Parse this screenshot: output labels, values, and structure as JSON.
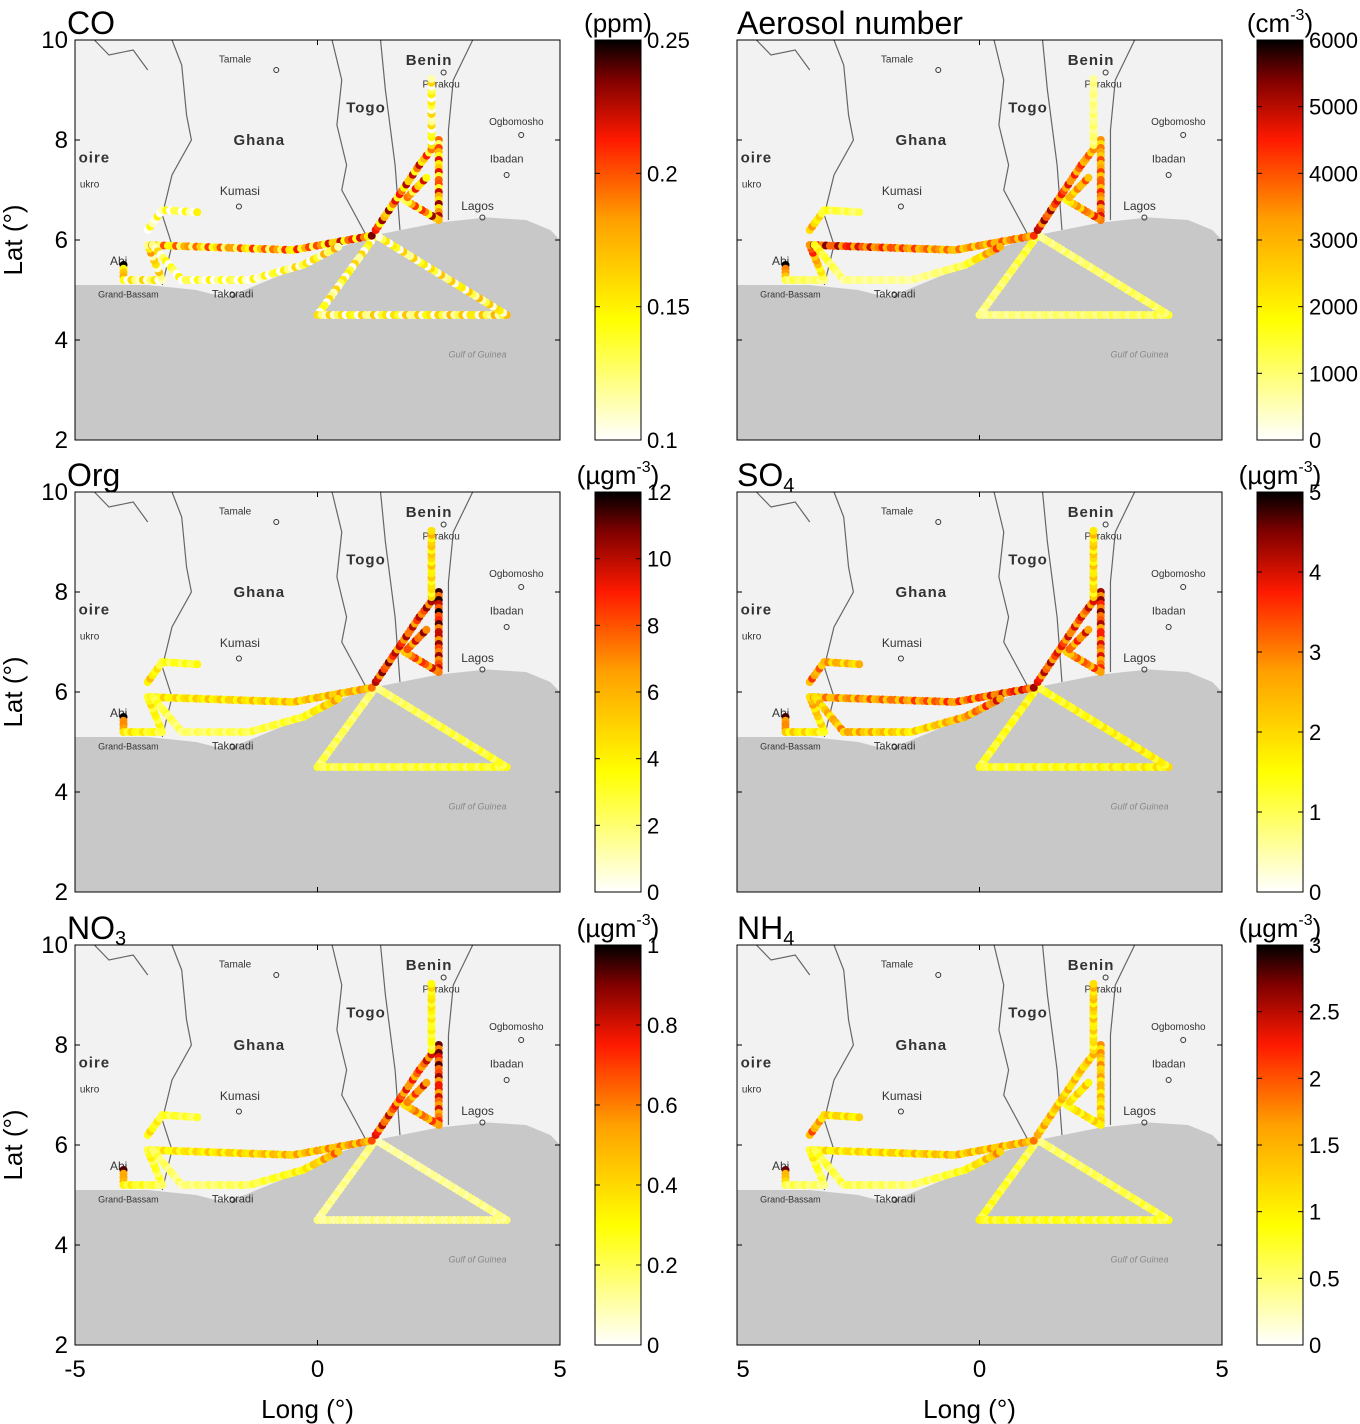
{
  "axes": {
    "xlabel": "Long (°)",
    "ylabel": "Lat (°)",
    "xlim": [
      -5,
      5
    ],
    "ylim": [
      2,
      10
    ],
    "xticks": [
      "-5",
      "0",
      "5"
    ],
    "yticks": [
      "10",
      "8",
      "6",
      "4",
      "2"
    ]
  },
  "colormap": {
    "name": "hot-reversed",
    "stops": [
      "#ffffff",
      "#ffff00",
      "#ffa000",
      "#ff1a00",
      "#800000",
      "#000000"
    ]
  },
  "map": {
    "land_color": "#f2f2f2",
    "sea_color": "#c8c8c8",
    "labels": [
      "Tamale",
      "Benin",
      "Parakou",
      "Togo",
      "Ghana",
      "Ogbomosho",
      "Ibadan",
      "oire",
      "ukro",
      "Kumasi",
      "Lagos",
      "Abi",
      "Grand-Bassam",
      "Takoradi",
      "Gulf of Guinea"
    ]
  },
  "chart_data": [
    {
      "type": "scatter",
      "title": "CO",
      "unit": "(ppm)",
      "clim": [
        0.1,
        0.25
      ],
      "cticks": [
        "0.25",
        "0.2",
        "0.15",
        "0.1"
      ],
      "track_values": [
        [
          0.13,
          0.13,
          0.14,
          0.13
        ],
        [
          0.2,
          0.13,
          0.13,
          0.16,
          0.17,
          0.19
        ],
        [
          0.13,
          0.12,
          0.12,
          0.13,
          0.15
        ],
        [
          0.12,
          0.12,
          0.12
        ],
        [
          0.19,
          0.18,
          0.17,
          0.19,
          0.17,
          0.18
        ],
        [
          0.13,
          0.13
        ]
      ]
    },
    {
      "type": "scatter",
      "title": "Aerosol number",
      "unit": "(cm-3)",
      "clim": [
        0,
        6000
      ],
      "cticks": [
        "6000",
        "5000",
        "4000",
        "3000",
        "2000",
        "1000",
        "0"
      ],
      "track_values": [
        [
          1500,
          800,
          1200,
          900
        ],
        [
          5500,
          1200,
          1000,
          4500,
          3000,
          3500
        ],
        [
          1800,
          800,
          700,
          1200,
          4000
        ],
        [
          3000,
          1500,
          1000
        ],
        [
          4500,
          3500,
          3000,
          4000,
          2500,
          3500
        ],
        [
          1000,
          800
        ]
      ]
    },
    {
      "type": "scatter",
      "title": "Org",
      "unit": "(µgm-3)",
      "clim": [
        0,
        12
      ],
      "cticks": [
        "12",
        "10",
        "8",
        "6",
        "4",
        "2",
        "0"
      ],
      "track_values": [
        [
          2,
          2.5,
          3,
          2
        ],
        [
          10,
          4,
          3,
          4,
          5,
          6
        ],
        [
          3,
          2,
          2.5,
          3,
          6
        ],
        [
          5,
          3,
          3
        ],
        [
          9,
          8,
          10,
          8,
          7,
          9
        ],
        [
          4,
          5
        ]
      ]
    },
    {
      "type": "scatter",
      "title": "SO4",
      "unit": "(µgm-3)",
      "clim": [
        0,
        5
      ],
      "cticks": [
        "5",
        "4",
        "3",
        "2",
        "1",
        "0"
      ],
      "track_values": [
        [
          1.5,
          1.2,
          1.6,
          1.3
        ],
        [
          3.8,
          2,
          1.5,
          2.5,
          3,
          3.5
        ],
        [
          2,
          2.5,
          1.8,
          2.5,
          3.5
        ],
        [
          3,
          2.5,
          2
        ],
        [
          3.5,
          3.2,
          3.8,
          3,
          2.8,
          3.4
        ],
        [
          1.8,
          2
        ]
      ]
    },
    {
      "type": "scatter",
      "title": "NO3",
      "unit": "(µgm-3)",
      "clim": [
        0,
        1
      ],
      "cticks": [
        "1",
        "0.8",
        "0.6",
        "0.4",
        "0.2",
        "0"
      ],
      "track_values": [
        [
          0.15,
          0.12,
          0.14,
          0.1
        ],
        [
          0.75,
          0.3,
          0.2,
          0.3,
          0.45,
          0.55
        ],
        [
          0.2,
          0.15,
          0.2,
          0.3,
          0.6
        ],
        [
          0.35,
          0.25,
          0.2
        ],
        [
          0.7,
          0.6,
          0.8,
          0.6,
          0.5,
          0.7
        ],
        [
          0.25,
          0.35
        ]
      ]
    },
    {
      "type": "scatter",
      "title": "NH4",
      "unit": "(µgm-3)",
      "clim": [
        0,
        3
      ],
      "cticks": [
        "3",
        "2.5",
        "2",
        "1.5",
        "1",
        "0.5",
        "0"
      ],
      "track_values": [
        [
          0.6,
          0.8,
          0.7,
          0.5
        ],
        [
          2.2,
          0.6,
          0.5,
          1,
          1.3,
          1.5
        ],
        [
          0.7,
          0.6,
          0.5,
          0.8,
          1.6
        ],
        [
          1.8,
          1.2,
          1
        ],
        [
          1.4,
          1.2,
          1.5,
          1.1,
          1,
          1.2
        ],
        [
          1,
          1.3
        ]
      ]
    }
  ]
}
